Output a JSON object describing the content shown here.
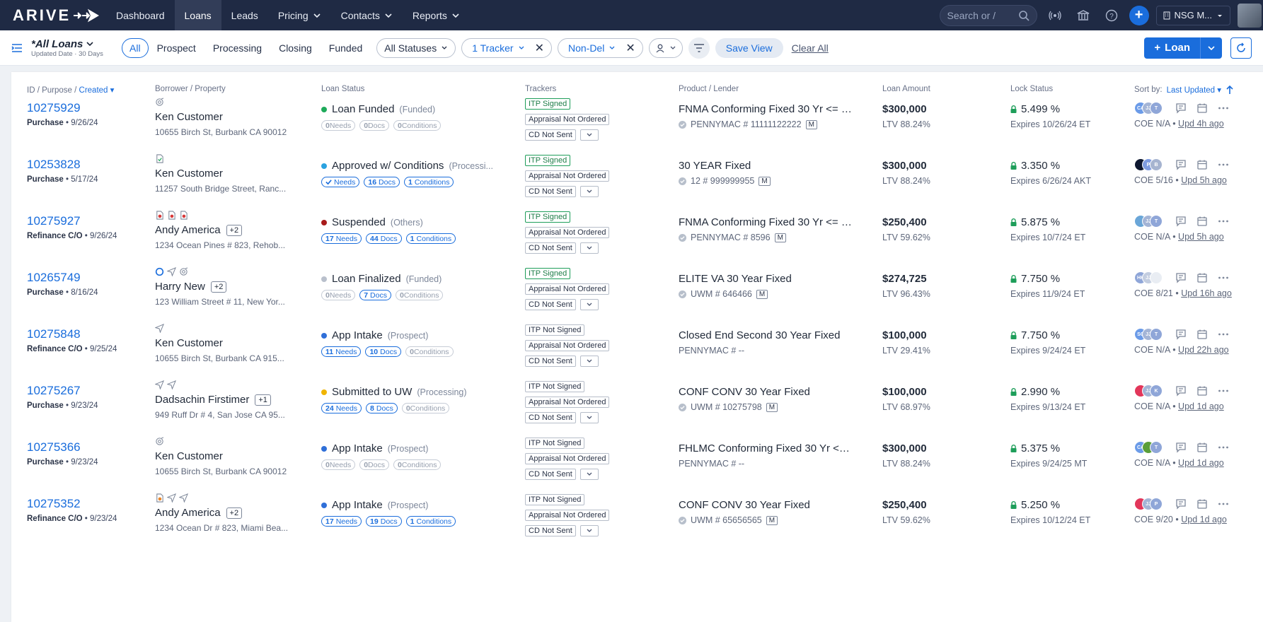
{
  "app": {
    "logo": "ARIVE",
    "nav": [
      {
        "label": "Dashboard",
        "caret": false,
        "active": false
      },
      {
        "label": "Loans",
        "caret": false,
        "active": true
      },
      {
        "label": "Leads",
        "caret": false,
        "active": false
      },
      {
        "label": "Pricing",
        "caret": true,
        "active": false
      },
      {
        "label": "Contacts",
        "caret": true,
        "active": false
      },
      {
        "label": "Reports",
        "caret": true,
        "active": false
      }
    ],
    "search_placeholder": "Search or /",
    "company": "NSG M...",
    "accent": "#1a6ddc",
    "nav_bg": "#1f2a44"
  },
  "toolbar": {
    "view_title": "*All Loans",
    "view_subtitle": "Updated Date · 30 Days",
    "segments": [
      "All",
      "Prospect",
      "Processing",
      "Closing",
      "Funded"
    ],
    "active_segment": "All",
    "status_filter": "All Statuses",
    "tracker_filter": "1 Tracker",
    "channel_filter": "Non-Del",
    "save_view": "Save View",
    "clear_all": "Clear All",
    "new_loan": "Loan"
  },
  "table": {
    "headers": {
      "id": "ID / Purpose / ",
      "id_sort": "Created",
      "borrower": "Borrower / Property",
      "status": "Loan Status",
      "trackers": "Trackers",
      "product": "Product / Lender",
      "amount": "Loan Amount",
      "lock": "Lock Status",
      "sort_by": "Sort by:",
      "sort_field": "Last Updated"
    },
    "rows": [
      {
        "id": "10275929",
        "purpose": "Purchase",
        "date": "9/26/24",
        "borrower": "Ken Customer",
        "extra": "",
        "address": "10655 Birch St, Burbank CA 90012",
        "icons": [
          "gear-target-icon"
        ],
        "status": "Loan Funded",
        "status_sub": "(Funded)",
        "status_color": "#1eaa5a",
        "needs": "0",
        "docs": "0",
        "conds": "0",
        "needs_active": false,
        "docs_active": false,
        "conds_active": false,
        "needs_check": false,
        "trk1": "ITP Signed",
        "trk1_green": true,
        "trk2": "Appraisal Not Ordered",
        "trk3": "CD Not Sent",
        "product": "FNMA Conforming Fixed 30 Yr <= $...",
        "lender": "PENNYMAC # 11111122222",
        "lender_check": true,
        "lender_m": true,
        "amount": "$300,000",
        "ltv": "LTV 88.24%",
        "rate": "5.499 %",
        "locked": true,
        "expires": "Expires 10/26/24 ET",
        "avatars": [
          {
            "t": "CA",
            "c": "#6b9be8"
          },
          {
            "t": "JJ",
            "c": "#a3b4d6"
          },
          {
            "t": "T",
            "c": "#8fa6d8"
          }
        ],
        "coe": "COE N/A",
        "upd": "Upd 4h ago"
      },
      {
        "id": "10253828",
        "purpose": "Purchase",
        "date": "5/17/24",
        "borrower": "Ken Customer",
        "extra": "",
        "address": "11257 South Bridge Street, Ranc...",
        "icons": [
          "doc-check-icon"
        ],
        "status": "Approved w/ Conditions",
        "status_sub": "(Processi...",
        "status_color": "#2aa2e0",
        "needs": "",
        "docs": "16",
        "conds": "1",
        "needs_active": true,
        "docs_active": true,
        "conds_active": true,
        "needs_check": true,
        "trk1": "ITP Signed",
        "trk1_green": true,
        "trk2": "Appraisal Not Ordered",
        "trk3": "CD Not Sent",
        "product": "30 YEAR Fixed",
        "lender": "12 # 999999955",
        "lender_check": true,
        "lender_m": true,
        "amount": "$300,000",
        "ltv": "LTV 88.24%",
        "rate": "3.350 %",
        "locked": true,
        "expires": "Expires 6/26/24 AKT",
        "avatars": [
          {
            "t": "",
            "c": "#0e1730"
          },
          {
            "t": "P",
            "c": "#7e9be0"
          },
          {
            "t": "B",
            "c": "#a6b4d0"
          }
        ],
        "coe": "COE 5/16",
        "upd": "Upd 5h ago"
      },
      {
        "id": "10275927",
        "purpose": "Refinance C/O",
        "date": "9/26/24",
        "borrower": "Andy America",
        "extra": "+2",
        "address": "1234 Ocean Pines # 823, Rehob...",
        "icons": [
          "doc-red-icon",
          "doc-red-icon",
          "doc-red-icon"
        ],
        "status": "Suspended",
        "status_sub": "(Others)",
        "status_color": "#a81b1b",
        "needs": "17",
        "docs": "44",
        "conds": "1",
        "needs_active": true,
        "docs_active": true,
        "conds_active": true,
        "needs_check": false,
        "trk1": "ITP Signed",
        "trk1_green": true,
        "trk2": "Appraisal Not Ordered",
        "trk3": "CD Not Sent",
        "product": "FNMA Conforming Fixed 30 Yr <= $...",
        "lender": "PENNYMAC # 8596",
        "lender_check": true,
        "lender_m": true,
        "amount": "$250,400",
        "ltv": "LTV 59.62%",
        "rate": "5.875 %",
        "locked": true,
        "expires": "Expires 10/7/24 ET",
        "avatars": [
          {
            "t": "",
            "c": "#6aa6d8"
          },
          {
            "t": "JJ",
            "c": "#a3b4d6"
          },
          {
            "t": "T",
            "c": "#8fa6d8"
          }
        ],
        "coe": "COE N/A",
        "upd": "Upd 5h ago"
      },
      {
        "id": "10265749",
        "purpose": "Purchase",
        "date": "8/16/24",
        "borrower": "Harry New",
        "extra": "+2",
        "address": "123 William Street # 11, New Yor...",
        "icons": [
          "circle-icon",
          "send-icon",
          "gear-target-icon"
        ],
        "status": "Loan Finalized",
        "status_sub": "(Funded)",
        "status_color": "#b9c0cc",
        "needs": "0",
        "docs": "7",
        "conds": "0",
        "needs_active": false,
        "docs_active": true,
        "conds_active": false,
        "needs_check": false,
        "trk1": "ITP Signed",
        "trk1_green": true,
        "trk2": "Appraisal Not Ordered",
        "trk3": "CD Not Sent",
        "product": "ELITE VA 30 Year Fixed",
        "lender": "UWM # 646466",
        "lender_check": true,
        "lender_m": true,
        "amount": "$274,725",
        "ltv": "LTV 96.43%",
        "rate": "7.750 %",
        "locked": true,
        "expires": "Expires 11/9/24 ET",
        "avatars": [
          {
            "t": "HK",
            "c": "#8fa6d8"
          },
          {
            "t": "JJ",
            "c": "#c3cde0"
          },
          {
            "t": "",
            "c": "#e9edf3"
          }
        ],
        "coe": "COE 8/21",
        "upd": "Upd 16h ago"
      },
      {
        "id": "10275848",
        "purpose": "Refinance C/O",
        "date": "9/25/24",
        "borrower": "Ken Customer",
        "extra": "",
        "address": "10655 Birch St, Burbank CA 915...",
        "icons": [
          "send-icon"
        ],
        "status": "App Intake",
        "status_sub": "(Prospect)",
        "status_color": "#2f6fd8",
        "needs": "11",
        "docs": "10",
        "conds": "0",
        "needs_active": true,
        "docs_active": true,
        "conds_active": false,
        "needs_check": false,
        "trk1": "ITP Not Signed",
        "trk1_green": false,
        "trk2": "Appraisal Not Ordered",
        "trk3": "CD Not Sent",
        "product": "Closed End Second 30 Year Fixed",
        "lender": "PENNYMAC # --",
        "lender_check": false,
        "lender_m": false,
        "amount": "$100,000",
        "ltv": "LTV 29.41%",
        "rate": "7.750 %",
        "locked": true,
        "expires": "Expires 9/24/24 ET",
        "avatars": [
          {
            "t": "SC",
            "c": "#6b9be8"
          },
          {
            "t": "JJ",
            "c": "#a3b4d6"
          },
          {
            "t": "T",
            "c": "#8fa6d8"
          }
        ],
        "coe": "COE N/A",
        "upd": "Upd 22h ago"
      },
      {
        "id": "10275267",
        "purpose": "Purchase",
        "date": "9/23/24",
        "borrower": "Dadsachin Firstimer",
        "extra": "+1",
        "address": "949 Ruff Dr # 4, San Jose CA 95...",
        "icons": [
          "send-icon",
          "send-icon"
        ],
        "status": "Submitted to UW",
        "status_sub": "(Processing)",
        "status_color": "#f0b400",
        "needs": "24",
        "docs": "8",
        "conds": "0",
        "needs_active": true,
        "docs_active": true,
        "conds_active": false,
        "needs_check": false,
        "trk1": "ITP Not Signed",
        "trk1_green": false,
        "trk2": "Appraisal Not Ordered",
        "trk3": "CD Not Sent",
        "product": "CONF CONV 30 Year Fixed",
        "lender": "UWM # 10275798",
        "lender_check": true,
        "lender_m": true,
        "amount": "$100,000",
        "ltv": "LTV 68.97%",
        "rate": "2.990 %",
        "locked": true,
        "expires": "Expires 9/13/24 ET",
        "avatars": [
          {
            "t": "",
            "c": "#e2365a"
          },
          {
            "t": "JJ",
            "c": "#a3b4d6"
          },
          {
            "t": "K",
            "c": "#8fa6d8"
          }
        ],
        "coe": "COE N/A",
        "upd": "Upd 1d ago"
      },
      {
        "id": "10275366",
        "purpose": "Purchase",
        "date": "9/23/24",
        "borrower": "Ken Customer",
        "extra": "",
        "address": "10655 Birch St, Burbank CA 90012",
        "icons": [
          "gear-target-icon"
        ],
        "status": "App Intake",
        "status_sub": "(Prospect)",
        "status_color": "#2f6fd8",
        "needs": "0",
        "docs": "0",
        "conds": "0",
        "needs_active": false,
        "docs_active": false,
        "conds_active": false,
        "needs_check": false,
        "trk1": "ITP Not Signed",
        "trk1_green": false,
        "trk2": "Appraisal Not Ordered",
        "trk3": "CD Not Sent",
        "product": "FHLMC Conforming Fixed 30 Yr <= ...",
        "lender": "PENNYMAC # --",
        "lender_check": false,
        "lender_m": false,
        "amount": "$300,000",
        "ltv": "LTV 88.24%",
        "rate": "5.375 %",
        "locked": true,
        "expires": "Expires 9/24/25 MT",
        "avatars": [
          {
            "t": "CA",
            "c": "#6b9be8"
          },
          {
            "t": "",
            "c": "#5a9e3a"
          },
          {
            "t": "T",
            "c": "#8fa6d8"
          }
        ],
        "coe": "COE N/A",
        "upd": "Upd 1d ago"
      },
      {
        "id": "10275352",
        "purpose": "Refinance C/O",
        "date": "9/23/24",
        "borrower": "Andy America",
        "extra": "+2",
        "address": "1234 Ocean Dr # 823, Miami Bea...",
        "icons": [
          "doc-orange-icon",
          "send-icon",
          "send-icon"
        ],
        "status": "App Intake",
        "status_sub": "(Prospect)",
        "status_color": "#2f6fd8",
        "needs": "17",
        "docs": "19",
        "conds": "1",
        "needs_active": true,
        "docs_active": true,
        "conds_active": true,
        "needs_check": false,
        "trk1": "ITP Not Signed",
        "trk1_green": false,
        "trk2": "Appraisal Not Ordered",
        "trk3": "CD Not Sent",
        "product": "CONF CONV 30 Year Fixed",
        "lender": "UWM # 65656565",
        "lender_check": true,
        "lender_m": true,
        "amount": "$250,400",
        "ltv": "LTV 59.62%",
        "rate": "5.250 %",
        "locked": true,
        "expires": "Expires 10/12/24 ET",
        "avatars": [
          {
            "t": "",
            "c": "#e2365a"
          },
          {
            "t": "JJ",
            "c": "#a3b4d6"
          },
          {
            "t": "P",
            "c": "#8fa6d8"
          }
        ],
        "coe": "COE 9/20",
        "upd": "Upd 1d ago"
      }
    ],
    "chip_labels": {
      "needs": "Needs",
      "docs": "Docs",
      "conds": "Conditions"
    },
    "m_badge": "M"
  }
}
